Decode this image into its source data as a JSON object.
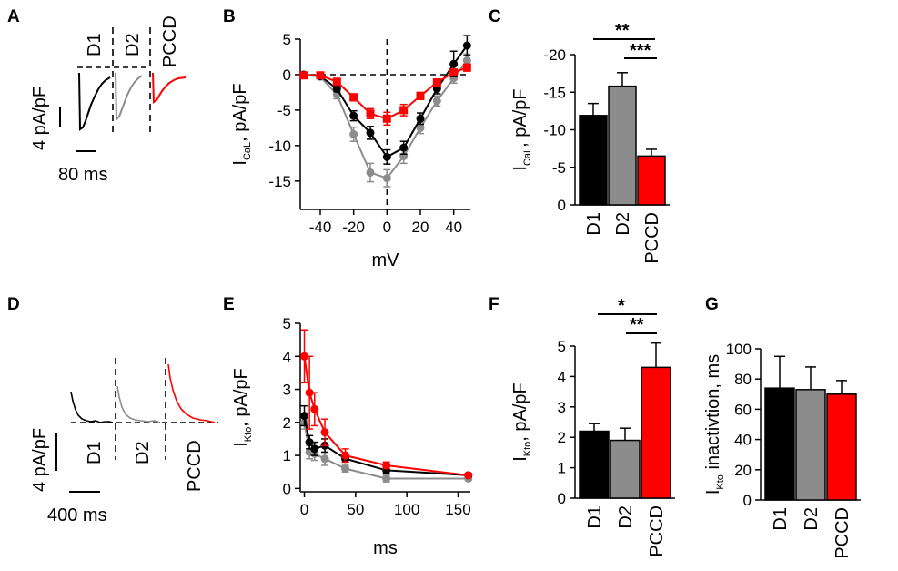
{
  "colors": {
    "D1": "#000000",
    "D2": "#8c8c8c",
    "PCCD": "#ff0000"
  },
  "panels": {
    "A": {
      "label": "A",
      "trace_labels": [
        "D1",
        "D2",
        "PCCD"
      ],
      "scalebar_y": "4 pA/pF",
      "scalebar_x": "80 ms"
    },
    "D": {
      "label": "D",
      "trace_labels": [
        "D1",
        "D2",
        "PCCD"
      ],
      "scalebar_y": "4 pA/pF",
      "scalebar_x": "400 ms"
    },
    "B": {
      "label": "B"
    },
    "C": {
      "label": "C",
      "sig": [
        "**",
        "***"
      ]
    },
    "E": {
      "label": "E"
    },
    "F": {
      "label": "F",
      "sig": [
        "*",
        "**"
      ]
    },
    "G": {
      "label": "G"
    }
  },
  "chart_data": [
    {
      "panel": "B",
      "type": "line",
      "xlabel": "mV",
      "ylabel_main": "I",
      "ylabel_sub": "CaL",
      "ylabel_rest": ", pA/pF",
      "xlim": [
        -52,
        50
      ],
      "ylim": [
        -19,
        5
      ],
      "xticks": [
        -40,
        -20,
        0,
        20,
        40
      ],
      "yticks": [
        5,
        0,
        -5,
        -10,
        -15
      ],
      "x": [
        -50,
        -40,
        -30,
        -20,
        -10,
        0,
        10,
        20,
        30,
        40,
        48
      ],
      "series": [
        {
          "group": "D2",
          "color": "#8c8c8c",
          "values": [
            0,
            -0.3,
            -2.8,
            -8.4,
            -13.8,
            -14.6,
            -11.5,
            -7.5,
            -3.7,
            -0.5,
            2.0
          ],
          "err": [
            0.3,
            0.3,
            0.6,
            1.0,
            1.3,
            1.2,
            1.0,
            0.8,
            0.7,
            0.7,
            0.9
          ]
        },
        {
          "group": "D1",
          "color": "#000000",
          "values": [
            0,
            -0.2,
            -2.0,
            -5.8,
            -8.2,
            -11.6,
            -10.3,
            -6.2,
            -2.0,
            1.5,
            4.1
          ],
          "err": [
            0.3,
            0.3,
            0.4,
            0.7,
            0.9,
            1.0,
            0.9,
            0.8,
            0.7,
            1.8,
            1.4
          ]
        },
        {
          "group": "PCCD",
          "color": "#ff0000",
          "values": [
            -0.1,
            -0.1,
            -1.0,
            -3.2,
            -5.5,
            -6.2,
            -5.0,
            -3.0,
            -1.1,
            0.3,
            1.0
          ],
          "err": [
            0.2,
            0.2,
            0.3,
            0.5,
            0.7,
            0.9,
            0.8,
            0.5,
            0.4,
            0.4,
            0.5
          ]
        }
      ]
    },
    {
      "panel": "C",
      "type": "bar",
      "ylabel_main": "I",
      "ylabel_sub": "CaL",
      "ylabel_rest": ", pA/pF",
      "categories": [
        "D1",
        "D2",
        "PCCD"
      ],
      "values": [
        -11.9,
        -15.8,
        -6.5
      ],
      "err": [
        1.6,
        1.8,
        0.9
      ],
      "ylim": [
        0,
        -20
      ],
      "yticks": [
        -20,
        -15,
        -10,
        -5,
        0
      ]
    },
    {
      "panel": "E",
      "type": "line",
      "xlabel": "ms",
      "ylabel_main": "I",
      "ylabel_sub": "Kto",
      "ylabel_rest": ", pA/pF",
      "xlim": [
        -4,
        162
      ],
      "ylim": [
        -0.1,
        5
      ],
      "xticks": [
        0,
        50,
        100,
        150
      ],
      "yticks": [
        0,
        1,
        2,
        3,
        4,
        5
      ],
      "x": [
        0,
        5,
        10,
        20,
        40,
        80,
        160
      ],
      "series": [
        {
          "group": "D2",
          "color": "#8c8c8c",
          "values": [
            2.0,
            1.1,
            1.05,
            0.9,
            0.6,
            0.3,
            0.3
          ],
          "err": [
            0.2,
            0.2,
            0.2,
            0.2,
            0.1,
            0.1,
            0.05
          ]
        },
        {
          "group": "D1",
          "color": "#000000",
          "values": [
            2.2,
            1.4,
            1.2,
            1.3,
            0.9,
            0.55,
            0.4
          ],
          "err": [
            0.3,
            0.2,
            0.2,
            0.2,
            0.1,
            0.1,
            0.05
          ]
        },
        {
          "group": "PCCD",
          "color": "#ff0000",
          "values": [
            4.0,
            2.9,
            2.4,
            1.7,
            1.0,
            0.7,
            0.4
          ],
          "err": [
            0.8,
            1.1,
            0.5,
            0.4,
            0.2,
            0.1,
            0.05
          ]
        }
      ]
    },
    {
      "panel": "F",
      "type": "bar",
      "ylabel_main": "I",
      "ylabel_sub": "Kto",
      "ylabel_rest": ", pA/pF",
      "categories": [
        "D1",
        "D2",
        "PCCD"
      ],
      "values": [
        2.2,
        1.9,
        4.3
      ],
      "err": [
        0.25,
        0.4,
        0.8
      ],
      "ylim": [
        0,
        5
      ],
      "yticks": [
        0,
        1,
        2,
        3,
        4,
        5
      ]
    },
    {
      "panel": "G",
      "type": "bar",
      "ylabel_main": "I",
      "ylabel_sub": "Kto",
      "ylabel_rest": " inactivtion, ms",
      "categories": [
        "D1",
        "D2",
        "PCCD"
      ],
      "values": [
        74,
        73,
        70
      ],
      "err": [
        21,
        15,
        9
      ],
      "ylim": [
        0,
        100
      ],
      "yticks": [
        0,
        20,
        40,
        60,
        80,
        100
      ]
    }
  ]
}
